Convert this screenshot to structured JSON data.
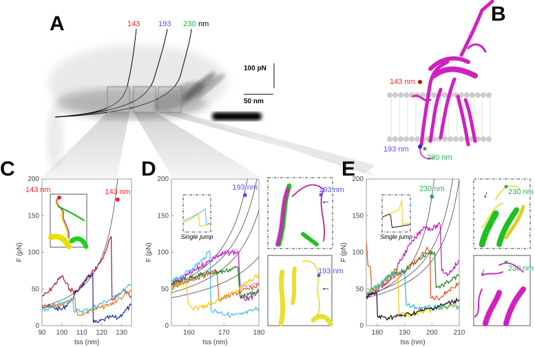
{
  "panels": {
    "A": {
      "letter": "A",
      "labels": {
        "l143": "143",
        "l193": "193",
        "l230": "230",
        "unit": "nm"
      },
      "scale": {
        "force": "100 pN",
        "length": "50 nm"
      }
    },
    "B": {
      "letter": "B",
      "labels": {
        "l143": "143 nm",
        "l193": "193 nm",
        "l230": "230 nm"
      }
    },
    "C": {
      "letter": "C",
      "inset_label": "143 nm"
    },
    "D": {
      "letter": "D",
      "inset_caption": "Single jump",
      "struct_label_top": "193 nm",
      "struct_label_bottom": "193 nm"
    },
    "E": {
      "letter": "E",
      "inset_caption": "Single jump",
      "struct_label_top": "230 nm",
      "struct_label_bottom": "230 nm"
    }
  },
  "colors": {
    "red": "#ff2020",
    "blue": "#5050ff",
    "green": "#20b050",
    "magenta": "#d020c0"
  },
  "chart_data": [
    {
      "id": "C",
      "type": "line",
      "xlabel": "tss (nm)",
      "ylabel": "F (pN)",
      "xlim": [
        90,
        135
      ],
      "ylim": [
        0,
        200
      ],
      "xticks": [
        90,
        100,
        110,
        120,
        130
      ],
      "yticks": [
        0,
        50,
        100,
        150,
        200
      ],
      "marker": {
        "x": 128,
        "y": 172,
        "label": "143 nm",
        "color": "#ff2020"
      },
      "wlc_curves": [
        {
          "F0": 30,
          "x0": 95,
          "Lc": 138,
          "p": 1.3
        }
      ],
      "series": [
        {
          "name": "trace-darkred",
          "color": "#a01830",
          "points": [
            [
              90,
              40
            ],
            [
              93,
              45
            ],
            [
              96,
              55
            ],
            [
              100,
              68
            ],
            [
              102,
              58
            ],
            [
              104,
              50
            ],
            [
              107,
              45
            ],
            [
              110,
              55
            ],
            [
              113,
              64
            ],
            [
              116,
              75
            ],
            [
              119,
              85
            ],
            [
              122,
              100
            ],
            [
              124.8,
              122
            ],
            [
              125.2,
              35
            ],
            [
              128,
              42
            ],
            [
              131,
              48
            ],
            [
              135,
              40
            ]
          ]
        },
        {
          "name": "trace-navy",
          "color": "#1a2a90",
          "points": [
            [
              90,
              28
            ],
            [
              95,
              25
            ],
            [
              100,
              22
            ],
            [
              103,
              30
            ],
            [
              106,
              40
            ],
            [
              109,
              52
            ],
            [
              112,
              62
            ],
            [
              115.5,
              72
            ],
            [
              115.8,
              5
            ],
            [
              118,
              4
            ],
            [
              121,
              8
            ],
            [
              125,
              12
            ],
            [
              128,
              10
            ],
            [
              131,
              18
            ],
            [
              135,
              28
            ]
          ]
        },
        {
          "name": "trace-orange",
          "color": "#f08010",
          "points": [
            [
              90,
              25
            ],
            [
              95,
              28
            ],
            [
              100,
              30
            ],
            [
              104,
              35
            ],
            [
              106.5,
              38
            ],
            [
              107,
              20
            ],
            [
              109,
              14
            ],
            [
              112,
              18
            ],
            [
              116,
              22
            ],
            [
              120,
              25
            ],
            [
              124,
              28
            ],
            [
              128,
              35
            ],
            [
              131,
              40
            ],
            [
              135,
              48
            ]
          ]
        },
        {
          "name": "trace-skyblue",
          "color": "#40b8f0",
          "points": [
            [
              90,
              20
            ],
            [
              94,
              24
            ],
            [
              98,
              28
            ],
            [
              102,
              32
            ],
            [
              105.5,
              38
            ],
            [
              106,
              20
            ],
            [
              110,
              20
            ],
            [
              114,
              22
            ],
            [
              118,
              28
            ],
            [
              122,
              33
            ],
            [
              126,
              38
            ],
            [
              130,
              46
            ],
            [
              135,
              56
            ]
          ]
        }
      ]
    },
    {
      "id": "D",
      "type": "line",
      "xlabel": "tss (nm)",
      "ylabel": "F (pN)",
      "xlim": [
        155,
        180
      ],
      "ylim": [
        0,
        200
      ],
      "xticks": [
        160,
        170,
        180
      ],
      "yticks": [
        0,
        50,
        100,
        150,
        200
      ],
      "marker": {
        "x": 176,
        "y": 178,
        "label": "193 nm",
        "color": "#5050ff"
      },
      "wlc_curves": [
        {
          "F0": 55,
          "x0": 155,
          "Lc": 185,
          "p": 1
        },
        {
          "F0": 52,
          "x0": 155,
          "Lc": 188,
          "p": 1
        },
        {
          "F0": 45,
          "x0": 155,
          "Lc": 190,
          "p": 1
        },
        {
          "F0": 38,
          "x0": 155,
          "Lc": 197,
          "p": 1
        }
      ],
      "series": [
        {
          "name": "trace-lilac",
          "color": "#d8a0f0",
          "points": [
            [
              155,
              58
            ],
            [
              160,
              72
            ],
            [
              165,
              88
            ],
            [
              170,
              100
            ],
            [
              174,
              102
            ],
            [
              174.8,
              52
            ],
            [
              177,
              55
            ],
            [
              180,
              58
            ]
          ]
        },
        {
          "name": "trace-magenta",
          "color": "#c010c0",
          "points": [
            [
              155,
              55
            ],
            [
              160,
              70
            ],
            [
              165,
              85
            ],
            [
              168,
              95
            ],
            [
              172,
              100
            ],
            [
              174.2,
              100
            ],
            [
              174.6,
              40
            ],
            [
              177,
              35
            ],
            [
              180,
              48
            ]
          ]
        },
        {
          "name": "trace-skyblue",
          "color": "#40b8f0",
          "points": [
            [
              155,
              60
            ],
            [
              158,
              68
            ],
            [
              161,
              78
            ],
            [
              164,
              90
            ],
            [
              166,
              102
            ],
            [
              166.3,
              22
            ],
            [
              169,
              18
            ],
            [
              172,
              14
            ],
            [
              175,
              15
            ],
            [
              178,
              20
            ],
            [
              180,
              24
            ]
          ]
        },
        {
          "name": "trace-orangered",
          "color": "#e85018",
          "points": [
            [
              155,
              52
            ],
            [
              160,
              62
            ],
            [
              164,
              68
            ],
            [
              168,
              75
            ],
            [
              168.6,
              35
            ],
            [
              171,
              40
            ],
            [
              174,
              45
            ],
            [
              177,
              50
            ],
            [
              180,
              55
            ]
          ]
        },
        {
          "name": "trace-green",
          "color": "#208020",
          "points": [
            [
              155,
              58
            ],
            [
              158,
              62
            ],
            [
              162,
              68
            ],
            [
              166,
              72
            ],
            [
              170,
              74
            ],
            [
              174,
              80
            ],
            [
              174.6,
              40
            ],
            [
              177,
              42
            ],
            [
              180,
              45
            ]
          ]
        },
        {
          "name": "trace-yellow",
          "color": "#f8c800",
          "points": [
            [
              155,
              50
            ],
            [
              157,
              55
            ],
            [
              159.3,
              58
            ],
            [
              159.8,
              30
            ],
            [
              161,
              22
            ],
            [
              165,
              28
            ],
            [
              170,
              38
            ],
            [
              174,
              48
            ],
            [
              177,
              60
            ],
            [
              180,
              70
            ]
          ]
        }
      ]
    },
    {
      "id": "E",
      "type": "line",
      "xlabel": "tss (nm)",
      "ylabel": "F (pN)",
      "xlim": [
        176,
        210
      ],
      "ylim": [
        0,
        200
      ],
      "xticks": [
        180,
        190,
        200,
        210
      ],
      "yticks": [
        0,
        50,
        100,
        150,
        200
      ],
      "marker": {
        "x": 200,
        "y": 176,
        "label": "230 nm",
        "color": "#20b050"
      },
      "wlc_curves": [
        {
          "F0": 40,
          "x0": 176,
          "Lc": 207,
          "p": 1
        },
        {
          "F0": 42,
          "x0": 176,
          "Lc": 216,
          "p": 1
        },
        {
          "F0": 38,
          "x0": 176,
          "Lc": 218,
          "p": 1
        }
      ],
      "series": [
        {
          "name": "trace-magenta",
          "color": "#c010c0",
          "points": [
            [
              176,
              38
            ],
            [
              180,
              48
            ],
            [
              185,
              65
            ],
            [
              188,
              85
            ],
            [
              191,
              105
            ],
            [
              194,
              120
            ],
            [
              197,
              135
            ],
            [
              200,
              132
            ],
            [
              203,
              138
            ],
            [
              203.6,
              75
            ],
            [
              206,
              70
            ],
            [
              208,
              80
            ],
            [
              210,
              88
            ]
          ]
        },
        {
          "name": "trace-green",
          "color": "#208020",
          "points": [
            [
              176,
              42
            ],
            [
              181,
              55
            ],
            [
              185,
              70
            ],
            [
              190,
              75
            ],
            [
              195,
              90
            ],
            [
              199,
              100
            ],
            [
              201,
              100
            ],
            [
              201.5,
              52
            ],
            [
              204,
              55
            ],
            [
              207,
              62
            ],
            [
              210,
              68
            ]
          ]
        },
        {
          "name": "trace-orangered",
          "color": "#e85018",
          "points": [
            [
              176,
              115
            ],
            [
              176.6,
              82
            ],
            [
              177.5,
              80
            ],
            [
              178,
              48
            ],
            [
              182,
              55
            ],
            [
              186,
              68
            ],
            [
              190,
              75
            ],
            [
              195,
              90
            ],
            [
              198,
              105
            ],
            [
              199.3,
              100
            ],
            [
              199.6,
              38
            ],
            [
              203,
              38
            ],
            [
              206,
              48
            ],
            [
              210,
              58
            ]
          ]
        },
        {
          "name": "trace-yellow",
          "color": "#f8c800",
          "points": [
            [
              176,
              45
            ],
            [
              180,
              52
            ],
            [
              184,
              68
            ],
            [
              187.5,
              78
            ],
            [
              188,
              16
            ],
            [
              192,
              14
            ],
            [
              196,
              18
            ],
            [
              200,
              22
            ],
            [
              205,
              25
            ],
            [
              210,
              28
            ]
          ]
        },
        {
          "name": "trace-cyan",
          "color": "#18b8c8",
          "points": [
            [
              176,
              45
            ],
            [
              181,
              55
            ],
            [
              185,
              70
            ],
            [
              190,
              75
            ],
            [
              190.6,
              28
            ],
            [
              194,
              25
            ],
            [
              198,
              24
            ],
            [
              202,
              25
            ],
            [
              206,
              26
            ],
            [
              210,
              25
            ]
          ]
        },
        {
          "name": "trace-black",
          "color": "#101010",
          "points": [
            [
              176,
              40
            ],
            [
              178,
              42
            ],
            [
              179.8,
              45
            ],
            [
              180.1,
              12
            ],
            [
              184,
              11
            ],
            [
              188,
              13
            ],
            [
              192,
              16
            ],
            [
              196,
              20
            ],
            [
              200,
              24
            ],
            [
              204,
              28
            ],
            [
              207,
              32
            ],
            [
              210,
              36
            ]
          ]
        }
      ]
    }
  ]
}
